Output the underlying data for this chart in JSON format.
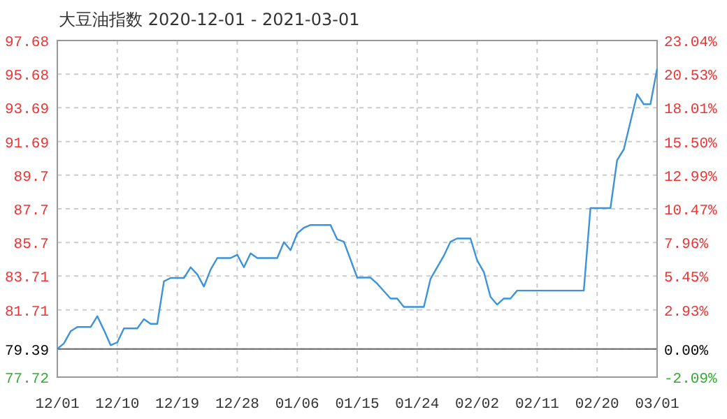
{
  "chart_data": {
    "type": "line",
    "title": "大豆油指数 2020-12-01 - 2021-03-01",
    "x": [
      "2020-12-01",
      "2020-12-02",
      "2020-12-03",
      "2020-12-04",
      "2020-12-06",
      "2020-12-07",
      "2020-12-08",
      "2020-12-09",
      "2020-12-10",
      "2020-12-11",
      "2020-12-13",
      "2020-12-14",
      "2020-12-15",
      "2020-12-16",
      "2020-12-17",
      "2020-12-18",
      "2020-12-20",
      "2020-12-21",
      "2020-12-22",
      "2020-12-23",
      "2020-12-24",
      "2020-12-25",
      "2020-12-27",
      "2020-12-28",
      "2020-12-29",
      "2020-12-30",
      "2020-12-31",
      "2021-01-03",
      "2021-01-04",
      "2021-01-05",
      "2021-01-06",
      "2021-01-07",
      "2021-01-08",
      "2021-01-11",
      "2021-01-12",
      "2021-01-13",
      "2021-01-15",
      "2021-01-17",
      "2021-01-18",
      "2021-01-20",
      "2021-01-21",
      "2021-01-22",
      "2021-01-25",
      "2021-01-26",
      "2021-01-28",
      "2021-01-29",
      "2021-01-30",
      "2021-02-01",
      "2021-02-02",
      "2021-02-03",
      "2021-02-04",
      "2021-02-05",
      "2021-02-06",
      "2021-02-07",
      "2021-02-08",
      "2021-02-18",
      "2021-02-19",
      "2021-02-22",
      "2021-02-23",
      "2021-02-24",
      "2021-02-26",
      "2021-02-27",
      "2021-02-28",
      "2021-03-01"
    ],
    "series": [
      {
        "color": "#3c93d8",
        "values": [
          79.39,
          79.72,
          80.44,
          80.69,
          80.69,
          81.33,
          80.5,
          79.61,
          79.78,
          80.61,
          80.61,
          81.16,
          80.88,
          80.88,
          83.4,
          83.6,
          83.6,
          84.23,
          83.81,
          83.09,
          84.09,
          84.78,
          84.78,
          84.97,
          84.23,
          85.06,
          84.78,
          84.78,
          85.72,
          85.25,
          86.24,
          86.58,
          86.74,
          86.74,
          85.89,
          85.75,
          83.62,
          83.62,
          83.26,
          82.38,
          82.38,
          81.88,
          81.88,
          83.54,
          84.92,
          85.75,
          85.94,
          85.94,
          84.64,
          83.95,
          82.48,
          82.02,
          82.38,
          82.38,
          82.85,
          82.85,
          87.74,
          87.74,
          90.58,
          91.22,
          94.5,
          93.9,
          93.9,
          96.0
        ]
      }
    ],
    "xlim": [
      "2020-12-01",
      "2021-03-01"
    ],
    "xticks": [
      {
        "value": "2020-12-01",
        "label": "12/01"
      },
      {
        "value": "2020-12-10",
        "label": "12/10"
      },
      {
        "value": "2020-12-19",
        "label": "12/19"
      },
      {
        "value": "2020-12-28",
        "label": "12/28"
      },
      {
        "value": "2021-01-06",
        "label": "01/06"
      },
      {
        "value": "2021-01-15",
        "label": "01/15"
      },
      {
        "value": "2021-01-24",
        "label": "01/24"
      },
      {
        "value": "2021-02-02",
        "label": "02/02"
      },
      {
        "value": "2021-02-11",
        "label": "02/11"
      },
      {
        "value": "2021-02-20",
        "label": "02/20"
      },
      {
        "value": "2021-03-01",
        "label": "03/01"
      }
    ],
    "ylim": [
      77.72,
      97.68
    ],
    "yticks": [
      77.72,
      79.39,
      81.71,
      83.71,
      85.7,
      87.7,
      89.7,
      91.69,
      93.69,
      95.68,
      97.68
    ],
    "y2lim": [
      -2.09,
      23.04
    ],
    "y2ticks": [
      {
        "value": -2.09,
        "label": "-2.09%"
      },
      {
        "value": 0,
        "label": "0.00%"
      },
      {
        "value": 2.93,
        "label": "2.93%"
      },
      {
        "value": 5.45,
        "label": "5.45%"
      },
      {
        "value": 7.96,
        "label": "7.96%"
      },
      {
        "value": 10.47,
        "label": "10.47%"
      },
      {
        "value": 12.99,
        "label": "12.99%"
      },
      {
        "value": 15.5,
        "label": "15.50%"
      },
      {
        "value": 18.01,
        "label": "18.01%"
      },
      {
        "value": 20.53,
        "label": "20.53%"
      },
      {
        "value": 23.04,
        "label": "23.04%"
      }
    ],
    "ref_lines": [
      {
        "axis": "y",
        "value": 79.39,
        "color": "#666666"
      }
    ],
    "grid": true,
    "marker": "none",
    "line_style": "solid"
  }
}
